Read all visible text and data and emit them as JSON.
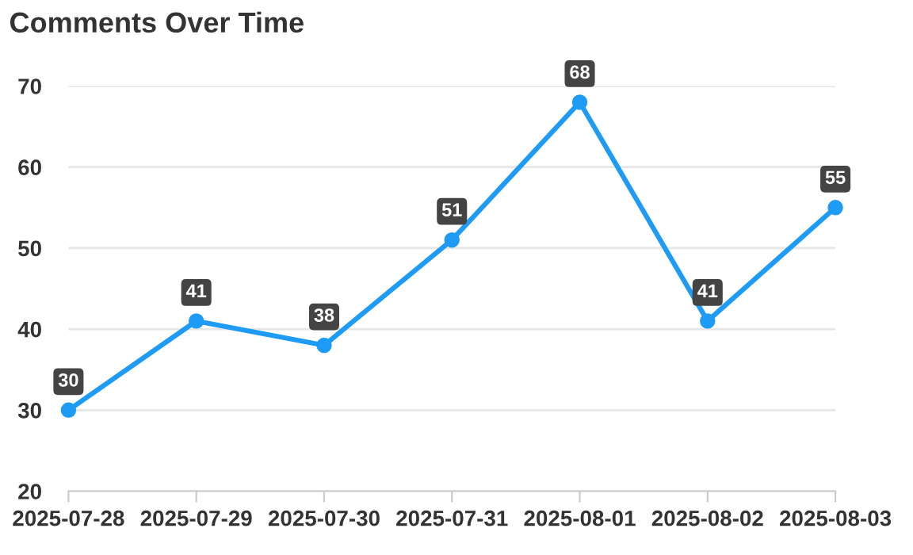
{
  "chart_data": {
    "type": "line",
    "title": "Comments Over Time",
    "categories": [
      "2025-07-28",
      "2025-07-29",
      "2025-07-30",
      "2025-07-31",
      "2025-08-01",
      "2025-08-02",
      "2025-08-03"
    ],
    "series": [
      {
        "color": "#1e9bf5",
        "values": [
          30,
          41,
          38,
          51,
          68,
          41,
          55
        ]
      }
    ],
    "ylim": [
      20,
      70
    ],
    "yticks": [
      20,
      30,
      40,
      50,
      60,
      70
    ],
    "grid": "y",
    "marker": "circle",
    "line_style": "solid",
    "data_labels": true,
    "legend": false
  }
}
